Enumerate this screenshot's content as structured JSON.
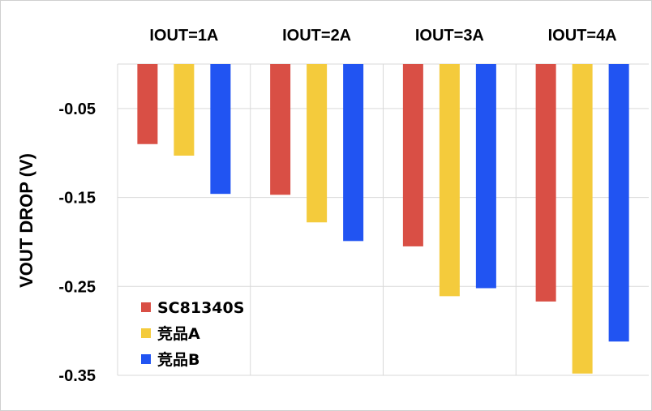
{
  "chart_data": {
    "type": "bar",
    "title": "",
    "xlabel": "",
    "ylabel": "VOUT DROP (V)",
    "categories": [
      "IOUT=1A",
      "IOUT=2A",
      "IOUT=3A",
      "IOUT=4A"
    ],
    "series": [
      {
        "name": "SC81340S",
        "color": "#d94f45",
        "values": [
          -0.09,
          -0.147,
          -0.205,
          -0.267
        ]
      },
      {
        "name": "竞品A",
        "color": "#f4cb3c",
        "values": [
          -0.103,
          -0.178,
          -0.261,
          -0.348
        ]
      },
      {
        "name": "竞品B",
        "color": "#2154f2",
        "values": [
          -0.146,
          -0.199,
          -0.252,
          -0.312
        ]
      }
    ],
    "yticks": [
      "-0.05",
      "-0.15",
      "-0.25",
      "-0.35"
    ],
    "ytick_values": [
      -0.05,
      -0.15,
      -0.25,
      -0.35
    ],
    "ylim": [
      -0.35,
      0
    ],
    "x_axis_position": "top",
    "grid": true,
    "legend": "bottom-left"
  }
}
